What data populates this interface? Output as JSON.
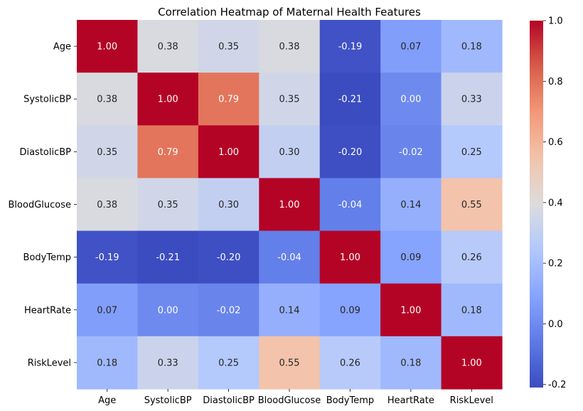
{
  "chart_data": {
    "type": "heatmap",
    "title": "Correlation Heatmap of Maternal Health Features",
    "rows": [
      "Age",
      "SystolicBP",
      "DiastolicBP",
      "BloodGlucose",
      "BodyTemp",
      "HeartRate",
      "RiskLevel"
    ],
    "columns": [
      "Age",
      "SystolicBP",
      "DiastolicBP",
      "BloodGlucose",
      "BodyTemp",
      "HeartRate",
      "RiskLevel"
    ],
    "values": [
      [
        1.0,
        0.38,
        0.35,
        0.38,
        -0.19,
        0.07,
        0.18
      ],
      [
        0.38,
        1.0,
        0.79,
        0.35,
        -0.21,
        0.0,
        0.33
      ],
      [
        0.35,
        0.79,
        1.0,
        0.3,
        -0.2,
        -0.02,
        0.25
      ],
      [
        0.38,
        0.35,
        0.3,
        1.0,
        -0.04,
        0.14,
        0.55
      ],
      [
        -0.19,
        -0.21,
        -0.2,
        -0.04,
        1.0,
        0.09,
        0.26
      ],
      [
        0.07,
        0.0,
        -0.02,
        0.14,
        0.09,
        1.0,
        0.18
      ],
      [
        0.18,
        0.33,
        0.25,
        0.55,
        0.26,
        0.18,
        1.0
      ]
    ],
    "value_labels": [
      [
        "1.00",
        "0.38",
        "0.35",
        "0.38",
        "-0.19",
        "0.07",
        "0.18"
      ],
      [
        "0.38",
        "1.00",
        "0.79",
        "0.35",
        "-0.21",
        "0.00",
        "0.33"
      ],
      [
        "0.35",
        "0.79",
        "1.00",
        "0.30",
        "-0.20",
        "-0.02",
        "0.25"
      ],
      [
        "0.38",
        "0.35",
        "0.30",
        "1.00",
        "-0.04",
        "0.14",
        "0.55"
      ],
      [
        "-0.19",
        "-0.21",
        "-0.20",
        "-0.04",
        "1.00",
        "0.09",
        "0.26"
      ],
      [
        "0.07",
        "0.00",
        "-0.02",
        "0.14",
        "0.09",
        "1.00",
        "0.18"
      ],
      [
        "0.18",
        "0.33",
        "0.25",
        "0.55",
        "0.26",
        "0.18",
        "1.00"
      ]
    ],
    "colormap": "coolwarm",
    "color_range": [
      -0.21,
      1.0
    ],
    "colorbar_ticks": [
      "-0.2",
      "0.0",
      "0.2",
      "0.4",
      "0.6",
      "0.8",
      "1.0"
    ],
    "colorbar_tick_values": [
      -0.2,
      0.0,
      0.2,
      0.4,
      0.6,
      0.8,
      1.0
    ],
    "annotation_colors": {
      "light_text": "#ffffff",
      "dark_text": "#262626"
    },
    "grid": false,
    "legend": "colorbar-right"
  }
}
